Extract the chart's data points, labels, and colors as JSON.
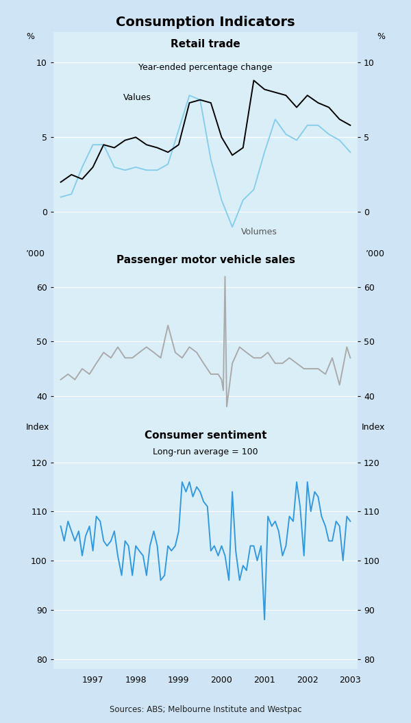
{
  "title": "Consumption Indicators",
  "fig_bg": "#cfe5f5",
  "panel_bg": "#daeef8",
  "panel1_title": "Retail trade",
  "panel1_subtitle": "Year-ended percentage change",
  "panel1_ylabel_left": "%",
  "panel1_ylabel_right": "%",
  "panel1_ylim": [
    -2.5,
    12
  ],
  "panel1_yticks": [
    0,
    5,
    10
  ],
  "panel2_title": "Passenger motor vehicle sales",
  "panel2_ylabel_left": "’000",
  "panel2_ylabel_right": "’000",
  "panel2_ylim": [
    35,
    67
  ],
  "panel2_yticks": [
    40,
    50,
    60
  ],
  "panel3_title": "Consumer sentiment",
  "panel3_subtitle": "Long-run average = 100",
  "panel3_ylabel_left": "Index",
  "panel3_ylabel_right": "Index",
  "panel3_ylim": [
    78,
    128
  ],
  "panel3_yticks": [
    80,
    90,
    100,
    110,
    120
  ],
  "source_text": "Sources: ABS; Melbourne Institute and Westpac",
  "retail_values_x": [
    1996.25,
    1996.5,
    1996.75,
    1997.0,
    1997.25,
    1997.5,
    1997.75,
    1998.0,
    1998.25,
    1998.5,
    1998.75,
    1999.0,
    1999.25,
    1999.5,
    1999.75,
    2000.0,
    2000.25,
    2000.5,
    2000.75,
    2001.0,
    2001.25,
    2001.5,
    2001.75,
    2002.0,
    2002.25,
    2002.5,
    2002.75,
    2003.0
  ],
  "retail_values_y": [
    2.0,
    2.5,
    2.2,
    3.0,
    4.5,
    4.3,
    4.8,
    5.0,
    4.5,
    4.3,
    4.0,
    4.5,
    7.3,
    7.5,
    7.3,
    5.0,
    3.8,
    4.3,
    8.8,
    8.2,
    8.0,
    7.8,
    7.0,
    7.8,
    7.3,
    7.0,
    6.2,
    5.8
  ],
  "retail_volumes_x": [
    1996.25,
    1996.5,
    1996.75,
    1997.0,
    1997.25,
    1997.5,
    1997.75,
    1998.0,
    1998.25,
    1998.5,
    1998.75,
    1999.0,
    1999.25,
    1999.5,
    1999.75,
    2000.0,
    2000.25,
    2000.5,
    2000.75,
    2001.0,
    2001.25,
    2001.5,
    2001.75,
    2002.0,
    2002.25,
    2002.5,
    2002.75,
    2003.0
  ],
  "retail_volumes_y": [
    1.0,
    1.2,
    3.0,
    4.5,
    4.5,
    3.0,
    2.8,
    3.0,
    2.8,
    2.8,
    3.2,
    5.5,
    7.8,
    7.5,
    3.5,
    0.8,
    -1.0,
    0.8,
    1.5,
    4.0,
    6.2,
    5.2,
    4.8,
    5.8,
    5.8,
    5.2,
    4.8,
    4.0
  ],
  "motor_x": [
    1996.25,
    1996.42,
    1996.58,
    1996.75,
    1996.92,
    1997.08,
    1997.25,
    1997.42,
    1997.58,
    1997.75,
    1997.92,
    1998.08,
    1998.25,
    1998.42,
    1998.58,
    1998.75,
    1998.92,
    1999.08,
    1999.25,
    1999.42,
    1999.58,
    1999.75,
    1999.92,
    2000.0,
    2000.04,
    2000.08,
    2000.12,
    2000.25,
    2000.42,
    2000.58,
    2000.75,
    2000.92,
    2001.08,
    2001.25,
    2001.42,
    2001.58,
    2001.75,
    2001.92,
    2002.08,
    2002.25,
    2002.42,
    2002.58,
    2002.75,
    2002.92,
    2003.0
  ],
  "motor_y": [
    43,
    44,
    43,
    45,
    44,
    46,
    48,
    47,
    49,
    47,
    47,
    48,
    49,
    48,
    47,
    53,
    48,
    47,
    49,
    48,
    46,
    44,
    44,
    43,
    41,
    62,
    38,
    46,
    49,
    48,
    47,
    47,
    48,
    46,
    46,
    47,
    46,
    45,
    45,
    45,
    44,
    47,
    42,
    49,
    47
  ],
  "sentiment_x": [
    1996.25,
    1996.33,
    1996.42,
    1996.5,
    1996.58,
    1996.67,
    1996.75,
    1996.83,
    1996.92,
    1997.0,
    1997.08,
    1997.17,
    1997.25,
    1997.33,
    1997.42,
    1997.5,
    1997.58,
    1997.67,
    1997.75,
    1997.83,
    1997.92,
    1998.0,
    1998.08,
    1998.17,
    1998.25,
    1998.33,
    1998.42,
    1998.5,
    1998.58,
    1998.67,
    1998.75,
    1998.83,
    1998.92,
    1999.0,
    1999.08,
    1999.17,
    1999.25,
    1999.33,
    1999.42,
    1999.5,
    1999.58,
    1999.67,
    1999.75,
    1999.83,
    1999.92,
    2000.0,
    2000.08,
    2000.17,
    2000.25,
    2000.33,
    2000.42,
    2000.5,
    2000.58,
    2000.67,
    2000.75,
    2000.83,
    2000.92,
    2001.0,
    2001.08,
    2001.17,
    2001.25,
    2001.33,
    2001.42,
    2001.5,
    2001.58,
    2001.67,
    2001.75,
    2001.83,
    2001.92,
    2002.0,
    2002.08,
    2002.17,
    2002.25,
    2002.33,
    2002.42,
    2002.5,
    2002.58,
    2002.67,
    2002.75,
    2002.83,
    2002.92,
    2003.0
  ],
  "sentiment_y": [
    107,
    104,
    108,
    106,
    104,
    106,
    101,
    105,
    107,
    102,
    109,
    108,
    104,
    103,
    104,
    106,
    101,
    97,
    104,
    103,
    97,
    103,
    102,
    101,
    97,
    103,
    106,
    103,
    96,
    97,
    103,
    102,
    103,
    106,
    116,
    114,
    116,
    113,
    115,
    114,
    112,
    111,
    102,
    103,
    101,
    103,
    101,
    96,
    114,
    102,
    96,
    99,
    98,
    103,
    103,
    100,
    103,
    88,
    109,
    107,
    108,
    106,
    101,
    103,
    109,
    108,
    116,
    111,
    101,
    116,
    110,
    114,
    113,
    109,
    107,
    104,
    104,
    108,
    107,
    100,
    109,
    108
  ],
  "values_color": "#000000",
  "volumes_color": "#87ceeb",
  "motor_color": "#aaaaaa",
  "sentiment_color": "#3399dd",
  "xtick_positions": [
    1997,
    1998,
    1999,
    2000,
    2001,
    2002,
    2003
  ],
  "xtick_labels": [
    "1997",
    "1998",
    "1999",
    "2000",
    "2001",
    "2002",
    "2003"
  ]
}
